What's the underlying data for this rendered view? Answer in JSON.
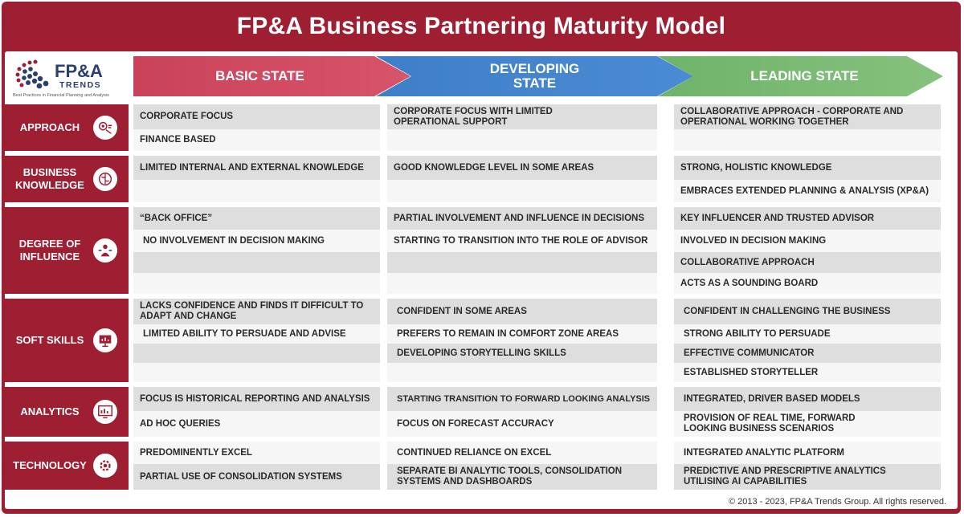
{
  "title": "FP&A Business Partnering Maturity Model",
  "logo": {
    "main": "FP&A",
    "sub": "TRENDS",
    "tagline": "Best Practices in Financial Planning and Analysis"
  },
  "stages": {
    "basic": "BASIC STATE",
    "developing": "DEVELOPING STATE",
    "leading": "LEADING STATE"
  },
  "rows": {
    "approach": {
      "label": "APPROACH",
      "basic": [
        "CORPORATE FOCUS",
        "FINANCE BASED"
      ],
      "developing": [
        "CORPORATE FOCUS WITH LIMITED OPERATIONAL SUPPORT"
      ],
      "leading": [
        "COLLABORATIVE APPROACH - CORPORATE AND OPERATIONAL WORKING TOGETHER"
      ]
    },
    "knowledge": {
      "label": "BUSINESS KNOWLEDGE",
      "basic": [
        "LIMITED INTERNAL AND EXTERNAL KNOWLEDGE"
      ],
      "developing": [
        "GOOD KNOWLEDGE LEVEL IN SOME AREAS"
      ],
      "leading": [
        "STRONG, HOLISTIC KNOWLEDGE",
        "EMBRACES EXTENDED PLANNING & ANALYSIS (XP&A)"
      ]
    },
    "influence": {
      "label": "DEGREE OF INFLUENCE",
      "basic": [
        "“BACK OFFICE”",
        "NO INVOLVEMENT IN DECISION MAKING"
      ],
      "developing": [
        "PARTIAL INVOLVEMENT AND INFLUENCE IN DECISIONS",
        "STARTING TO TRANSITION INTO THE ROLE OF ADVISOR"
      ],
      "leading": [
        "KEY INFLUENCER AND TRUSTED ADVISOR",
        "INVOLVED IN DECISION MAKING",
        "COLLABORATIVE APPROACH",
        "ACTS AS A SOUNDING BOARD"
      ]
    },
    "soft": {
      "label": "SOFT SKILLS",
      "basic": [
        "LACKS CONFIDENCE AND FINDS IT DIFFICULT TO ADAPT AND CHANGE",
        "LIMITED ABILITY TO PERSUADE AND ADVISE"
      ],
      "developing": [
        "CONFIDENT IN SOME AREAS",
        "PREFERS TO REMAIN IN COMFORT ZONE AREAS",
        "DEVELOPING STORYTELLING SKILLS"
      ],
      "leading": [
        "CONFIDENT IN CHALLENGING THE BUSINESS",
        "STRONG ABILITY TO PERSUADE",
        "EFFECTIVE COMMUNICATOR",
        "ESTABLISHED STORYTELLER"
      ]
    },
    "analytics": {
      "label": "ANALYTICS",
      "basic": [
        "FOCUS IS HISTORICAL REPORTING AND ANALYSIS",
        "AD HOC QUERIES"
      ],
      "developing": [
        "STARTING TRANSITION TO FORWARD LOOKING ANALYSIS",
        "FOCUS ON FORECAST ACCURACY"
      ],
      "leading": [
        "INTEGRATED, DRIVER BASED MODELS",
        "PROVISION OF REAL TIME, FORWARD LOOKING BUSINESS SCENARIOS"
      ]
    },
    "technology": {
      "label": "TECHNOLOGY",
      "basic": [
        "PREDOMINENTLY EXCEL",
        "PARTIAL USE OF CONSOLIDATION SYSTEMS"
      ],
      "developing": [
        "CONTINUED RELIANCE ON EXCEL",
        "SEPARATE BI ANALYTIC TOOLS, CONSOLIDATION SYSTEMS AND DASHBOARDS"
      ],
      "leading": [
        "INTEGRATED ANALYTIC PLATFORM",
        "PREDICTIVE AND PRESCRIPTIVE ANALYTICS UTILISING AI CAPABILITIES"
      ]
    }
  },
  "footer": "© 2013 - 2023, FP&A Trends Group. All rights reserved.",
  "colors": {
    "brand": "#9e1f32",
    "basic": "#d04b62",
    "developing": "#4385ce",
    "leading": "#79ba72"
  }
}
